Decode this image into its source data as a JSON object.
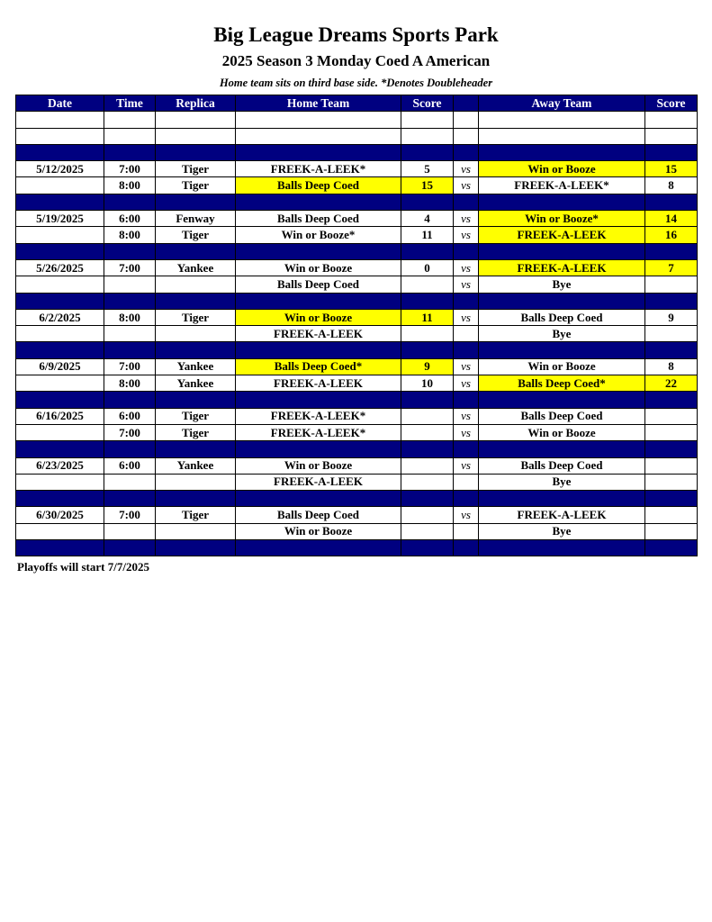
{
  "title": "Big League Dreams Sports Park",
  "subtitle": "2025 Season 3 Monday Coed A American",
  "note": "Home team sits on third base side.  *Denotes Doubleheader",
  "columns": [
    "Date",
    "Time",
    "Replica",
    "Home Team",
    "Score",
    "",
    "Away Team",
    "Score"
  ],
  "highlight_color": "#ffff00",
  "header_color": "#000080",
  "weeks": [
    {
      "games": [
        {
          "date": "",
          "time": "",
          "field": "",
          "home": "",
          "home_score": "",
          "vs": "",
          "away": "",
          "away_score": "",
          "winner": null
        },
        {
          "date": "",
          "time": "",
          "field": "",
          "home": "",
          "home_score": "",
          "vs": "",
          "away": "",
          "away_score": "",
          "winner": null
        }
      ]
    },
    {
      "games": [
        {
          "date": "5/12/2025",
          "time": "7:00",
          "field": "Tiger",
          "home": "FREEK-A-LEEK*",
          "home_score": "5",
          "vs": "vs",
          "away": "Win or Booze",
          "away_score": "15",
          "winner": "away"
        },
        {
          "date": "",
          "time": "8:00",
          "field": "Tiger",
          "home": "Balls Deep Coed",
          "home_score": "15",
          "vs": "vs",
          "away": "FREEK-A-LEEK*",
          "away_score": "8",
          "winner": "home"
        }
      ]
    },
    {
      "games": [
        {
          "date": "5/19/2025",
          "time": "6:00",
          "field": "Fenway",
          "home": "Balls Deep Coed",
          "home_score": "4",
          "vs": "vs",
          "away": "Win or Booze*",
          "away_score": "14",
          "winner": "away"
        },
        {
          "date": "",
          "time": "8:00",
          "field": "Tiger",
          "home": "Win or Booze*",
          "home_score": "11",
          "vs": "vs",
          "away": "FREEK-A-LEEK",
          "away_score": "16",
          "winner": "away"
        }
      ]
    },
    {
      "games": [
        {
          "date": "5/26/2025",
          "time": "7:00",
          "field": "Yankee",
          "home": "Win or Booze",
          "home_score": "0",
          "vs": "vs",
          "away": "FREEK-A-LEEK",
          "away_score": "7",
          "winner": "away"
        },
        {
          "date": "",
          "time": "",
          "field": "",
          "home": "Balls Deep Coed",
          "home_score": "",
          "vs": "vs",
          "away": "Bye",
          "away_score": "",
          "winner": null
        }
      ]
    },
    {
      "games": [
        {
          "date": "6/2/2025",
          "time": "8:00",
          "field": "Tiger",
          "home": "Win or Booze",
          "home_score": "11",
          "vs": "vs",
          "away": "Balls Deep Coed",
          "away_score": "9",
          "winner": "home"
        },
        {
          "date": "",
          "time": "",
          "field": "",
          "home": "FREEK-A-LEEK",
          "home_score": "",
          "vs": "",
          "away": "Bye",
          "away_score": "",
          "winner": null
        }
      ]
    },
    {
      "games": [
        {
          "date": "6/9/2025",
          "time": "7:00",
          "field": "Yankee",
          "home": "Balls Deep Coed*",
          "home_score": "9",
          "vs": "vs",
          "away": "Win or Booze",
          "away_score": "8",
          "winner": "home"
        },
        {
          "date": "",
          "time": "8:00",
          "field": "Yankee",
          "home": "FREEK-A-LEEK",
          "home_score": "10",
          "vs": "vs",
          "away": "Balls Deep Coed*",
          "away_score": "22",
          "winner": "away"
        }
      ]
    },
    {
      "games": [
        {
          "date": "6/16/2025",
          "time": "6:00",
          "field": "Tiger",
          "home": "FREEK-A-LEEK*",
          "home_score": "",
          "vs": "vs",
          "away": "Balls Deep Coed",
          "away_score": "",
          "winner": null
        },
        {
          "date": "",
          "time": "7:00",
          "field": "Tiger",
          "home": "FREEK-A-LEEK*",
          "home_score": "",
          "vs": "vs",
          "away": "Win or Booze",
          "away_score": "",
          "winner": null
        }
      ]
    },
    {
      "games": [
        {
          "date": "6/23/2025",
          "time": "6:00",
          "field": "Yankee",
          "home": "Win or Booze",
          "home_score": "",
          "vs": "vs",
          "away": "Balls Deep Coed",
          "away_score": "",
          "winner": null
        },
        {
          "date": "",
          "time": "",
          "field": "",
          "home": "FREEK-A-LEEK",
          "home_score": "",
          "vs": "",
          "away": "Bye",
          "away_score": "",
          "winner": null
        }
      ]
    },
    {
      "games": [
        {
          "date": "6/30/2025",
          "time": "7:00",
          "field": "Tiger",
          "home": "Balls Deep Coed",
          "home_score": "",
          "vs": "vs",
          "away": "FREEK-A-LEEK",
          "away_score": "",
          "winner": null
        },
        {
          "date": "",
          "time": "",
          "field": "",
          "home": "Win or Booze",
          "home_score": "",
          "vs": "",
          "away": "Bye",
          "away_score": "",
          "winner": null
        }
      ]
    }
  ],
  "footer": "Playoffs will start 7/7/2025"
}
